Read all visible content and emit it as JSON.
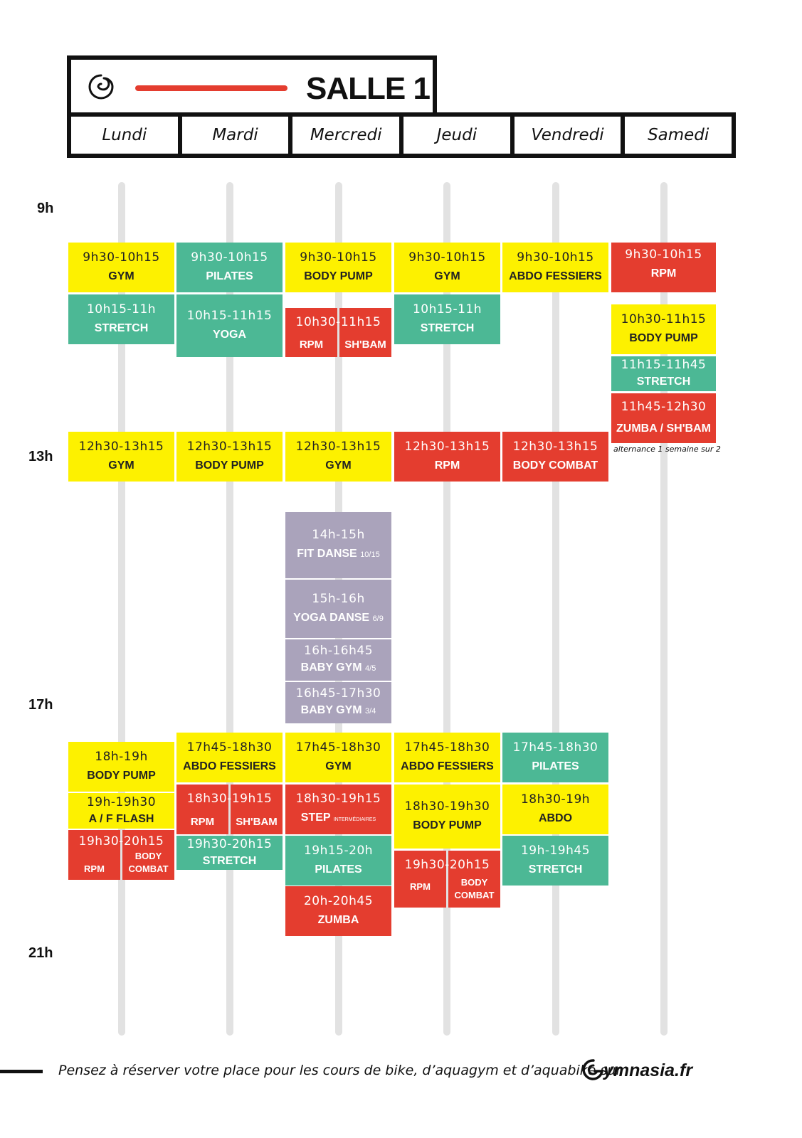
{
  "header": {
    "title": "SALLE 1"
  },
  "days": [
    "Lundi",
    "Mardi",
    "Mercredi",
    "Jeudi",
    "Vendredi",
    "Samedi"
  ],
  "hours": [
    "9h",
    "13h",
    "17h",
    "21h"
  ],
  "lundi": {
    "c1": {
      "time": "9h30-10h15",
      "name": "GYM"
    },
    "c2": {
      "time": "10h15-11h",
      "name": "STRETCH"
    },
    "c3": {
      "time": "12h30-13h15",
      "name": "GYM"
    },
    "c4": {
      "time": "18h-19h",
      "name": "BODY PUMP"
    },
    "c5": {
      "time": "19h-19h30",
      "name": "A / F FLASH"
    },
    "c6": {
      "time": "19h30-20h15",
      "left": "RPM",
      "right": "BODY COMBAT"
    }
  },
  "mardi": {
    "c1": {
      "time": "9h30-10h15",
      "name": "PILATES"
    },
    "c2": {
      "time": "10h15-11h15",
      "name": "YOGA"
    },
    "c3": {
      "time": "12h30-13h15",
      "name": "BODY PUMP"
    },
    "c4": {
      "time": "17h45-18h30",
      "name": "ABDO FESSIERS"
    },
    "c5": {
      "time": "18h30-19h15",
      "left": "RPM",
      "right": "SH'BAM"
    },
    "c6": {
      "time": "19h30-20h15",
      "name": "STRETCH"
    }
  },
  "mercredi": {
    "c1": {
      "time": "9h30-10h15",
      "name": "BODY PUMP"
    },
    "c2": {
      "time": "10h30-11h15",
      "left": "RPM",
      "right": "SH'BAM"
    },
    "c3": {
      "time": "12h30-13h15",
      "name": "GYM"
    },
    "c4": {
      "time": "14h-15h",
      "name": "FIT DANSE",
      "age": "10/15"
    },
    "c5": {
      "time": "15h-16h",
      "name": "YOGA DANSE",
      "age": "6/9"
    },
    "c6": {
      "time": "16h-16h45",
      "name": "BABY GYM",
      "age": "4/5"
    },
    "c7": {
      "time": "16h45-17h30",
      "name": "BABY GYM",
      "age": "3/4"
    },
    "c8": {
      "time": "17h45-18h30",
      "name": "GYM"
    },
    "c9": {
      "time": "18h30-19h15",
      "name": "STEP",
      "level": "INTERMÉDIAIRES"
    },
    "c10": {
      "time": "19h15-20h",
      "name": "PILATES"
    },
    "c11": {
      "time": "20h-20h45",
      "name": "ZUMBA"
    }
  },
  "jeudi": {
    "c1": {
      "time": "9h30-10h15",
      "name": "GYM"
    },
    "c2": {
      "time": "10h15-11h",
      "name": "STRETCH"
    },
    "c3": {
      "time": "12h30-13h15",
      "name": "RPM"
    },
    "c4": {
      "time": "17h45-18h30",
      "name": "ABDO FESSIERS"
    },
    "c5": {
      "time": "18h30-19h30",
      "name": "BODY PUMP"
    },
    "c6": {
      "time": "19h30-20h15",
      "left": "RPM",
      "right": "BODY COMBAT"
    }
  },
  "vendredi": {
    "c1": {
      "time": "9h30-10h15",
      "name": "ABDO FESSIERS"
    },
    "c2": {
      "time": "12h30-13h15",
      "name": "BODY COMBAT"
    },
    "c3": {
      "time": "17h45-18h30",
      "name": "PILATES"
    },
    "c4": {
      "time": "18h30-19h",
      "name": "ABDO"
    },
    "c5": {
      "time": "19h-19h45",
      "name": "STRETCH"
    }
  },
  "samedi": {
    "c1": {
      "time": "9h30-10h15",
      "name": "RPM"
    },
    "c2": {
      "time": "10h30-11h15",
      "name": "BODY PUMP"
    },
    "c3": {
      "time": "11h15-11h45",
      "name": "STRETCH"
    },
    "c4": {
      "time": "11h45-12h30",
      "name": "ZUMBA / SH'BAM"
    },
    "note": "alternance 1 semaine sur 2"
  },
  "footer": {
    "text": "Pensez à réserver votre place pour les cours de bike, d’aquagym et d’aquabike sur",
    "brand": "ymnasia.fr"
  },
  "icons": {
    "logo": "gymnasia-swirl-icon"
  },
  "colors": {
    "yellow": "#fdf100",
    "green": "#4cb895",
    "red": "#e43d2f",
    "purple": "#aaa3bb"
  }
}
